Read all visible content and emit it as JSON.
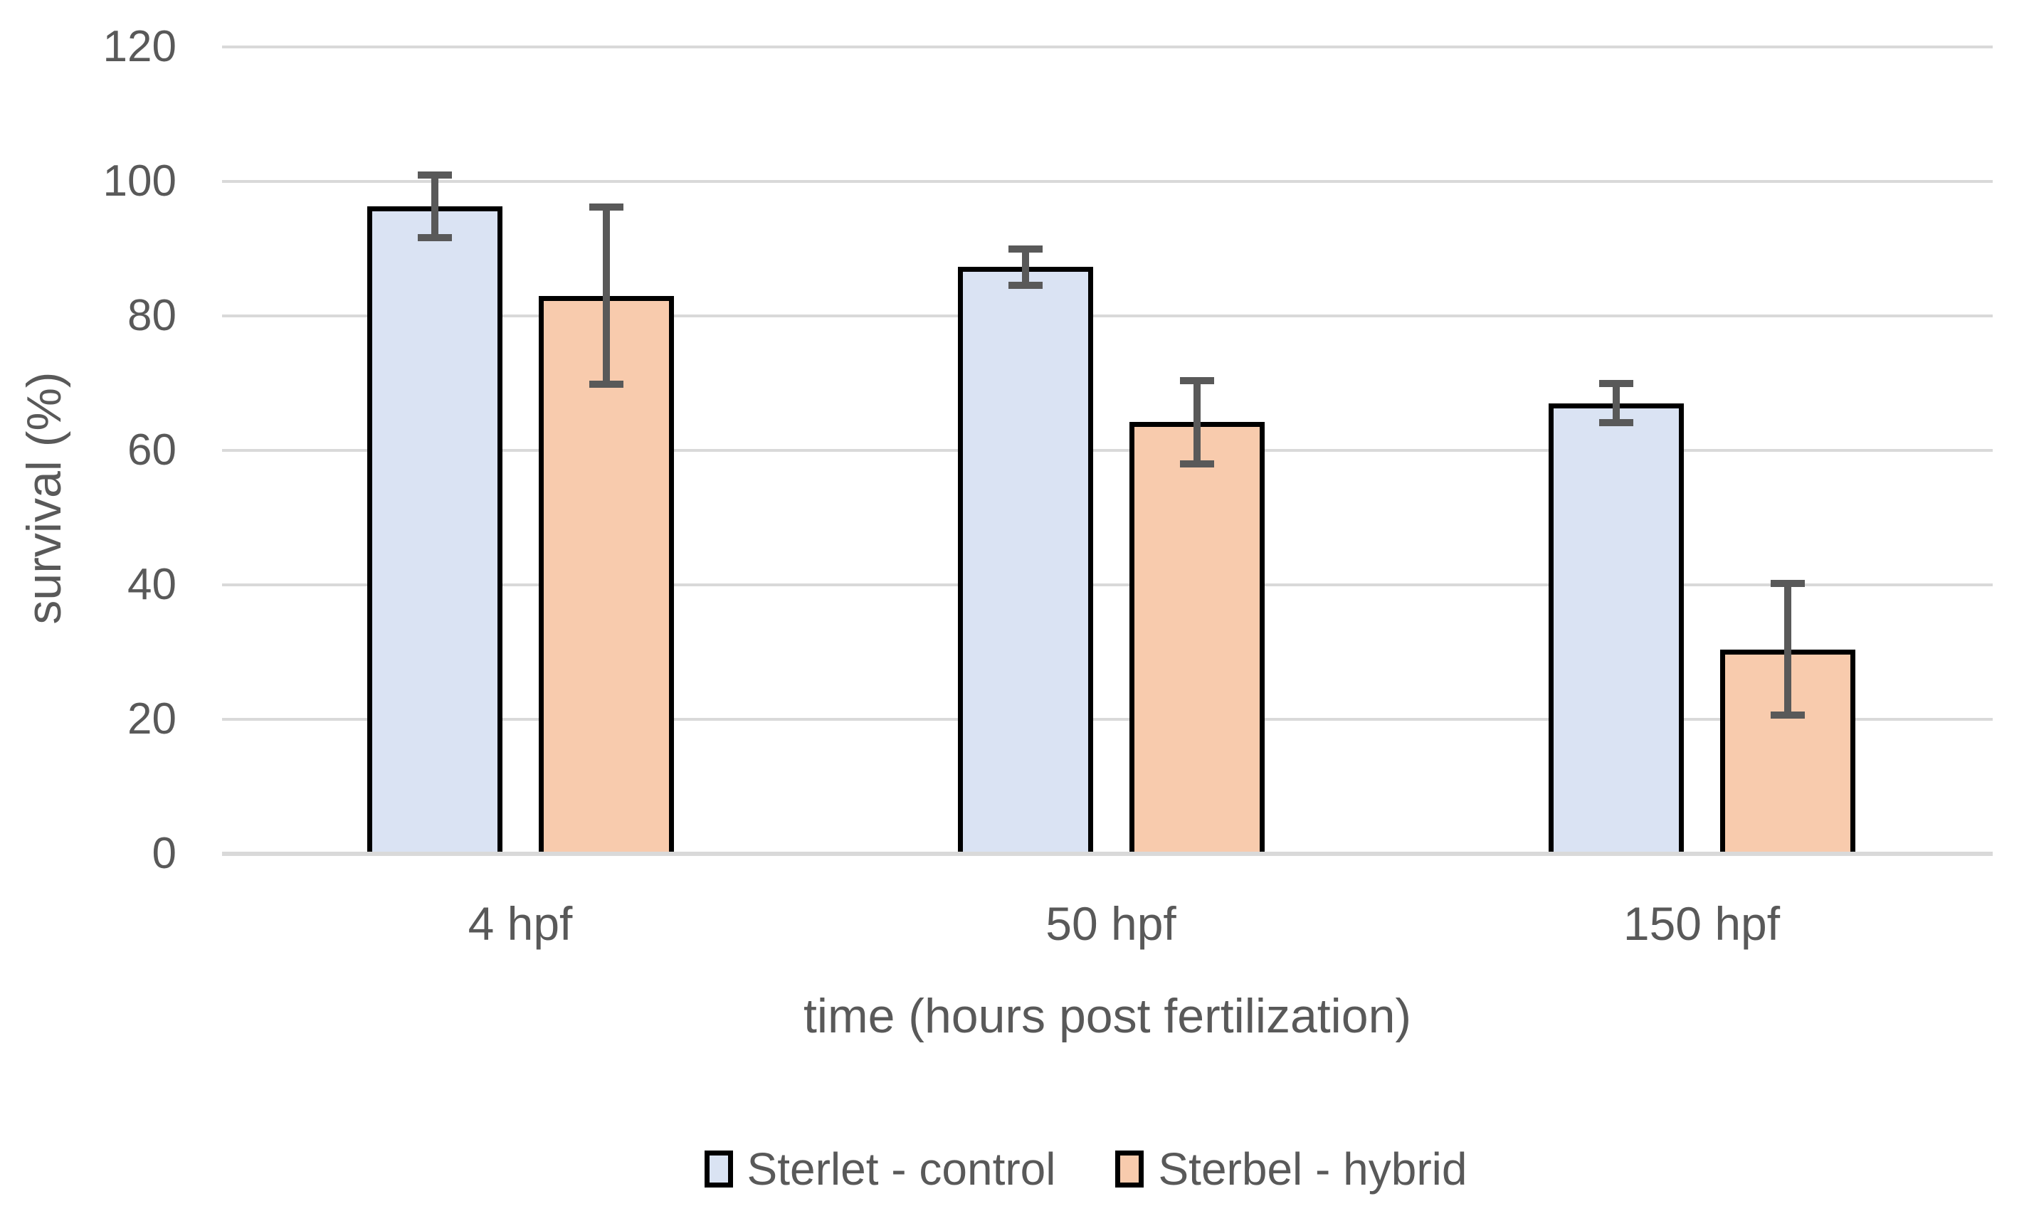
{
  "chart_data": {
    "type": "bar",
    "categories": [
      "4 hpf",
      "50 hpf",
      "150 hpf"
    ],
    "series": [
      {
        "name": "Sterlet - control",
        "color": "#dae3f3",
        "values": [
          96.3,
          87.3,
          67.0
        ],
        "error_bars": [
          4.7,
          2.7,
          2.9
        ]
      },
      {
        "name": "Sterbel - hybrid",
        "color": "#f8cbad",
        "values": [
          83.0,
          64.2,
          30.4
        ],
        "error_bars": [
          13.2,
          6.2,
          9.8
        ]
      }
    ],
    "xlabel": "time (hours post fertilization)",
    "ylabel": "survival (%)",
    "ylim": [
      0,
      120
    ],
    "yticks": [
      0,
      20,
      40,
      60,
      80,
      100,
      120
    ],
    "grid": "horizontal",
    "legend_position": "bottom",
    "colors": {
      "gridline": "#d9d9d9",
      "axis_line": "#d9d9d9",
      "error_bar": "#595959",
      "bar_outline": "#000000",
      "text": "#595959",
      "background": "#ffffff"
    }
  }
}
